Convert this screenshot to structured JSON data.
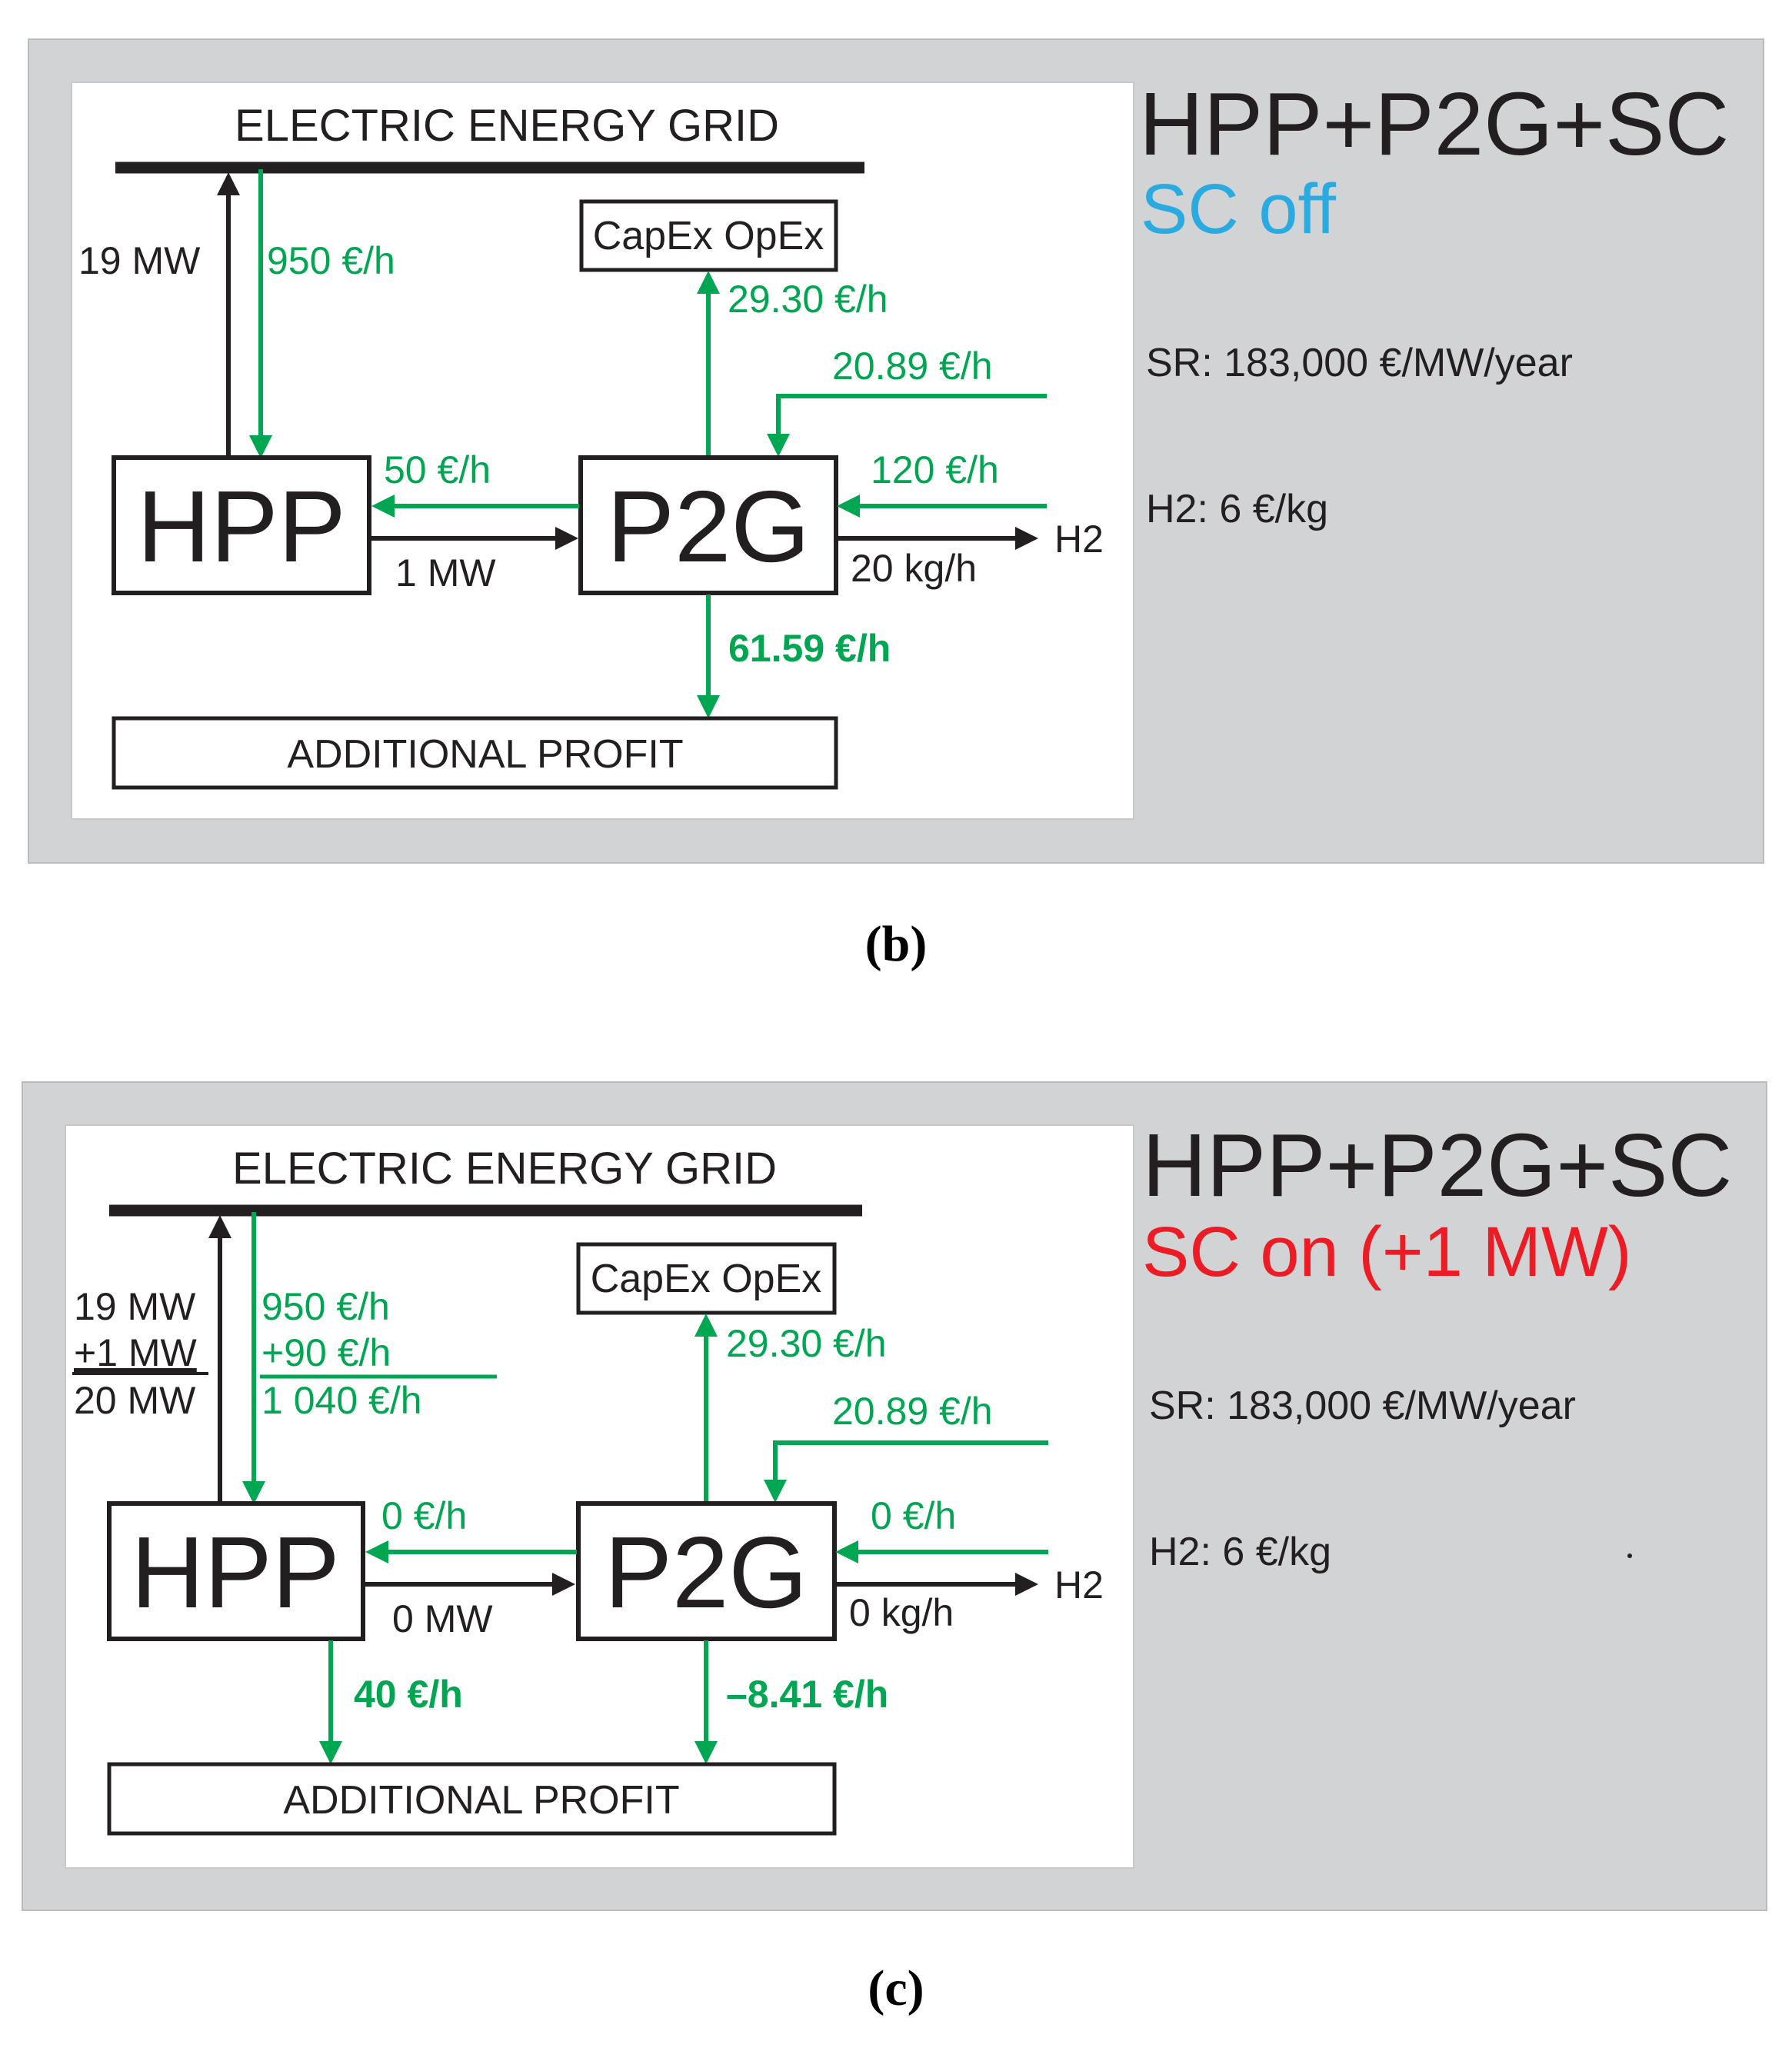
{
  "colors": {
    "flow_money": "#00a651",
    "flow_power": "#231f20",
    "status_off": "#29abe2",
    "status_on": "#ed1c24",
    "panel_bg": "#d1d3d4"
  },
  "panel_b": {
    "caption": "(b)",
    "title": "HPP+P2G+SC",
    "status": "SC off",
    "sr_param": "SR: 183,000 €/MW/year",
    "h2_param": "H2: 6 €/kg",
    "grid_label": "ELECTRIC ENERGY GRID",
    "capex_label": "CapEx OpEx",
    "hpp_label": "HPP",
    "p2g_label": "P2G",
    "profit_label": "ADDITIONAL PROFIT",
    "h2_label": "H2",
    "hpp_to_grid_power": "19 MW",
    "grid_to_hpp_money": "950 €/h",
    "p2g_to_capex_money": "29.30 €/h",
    "sr_to_p2g_money": "20.89 €/h",
    "p2g_to_hpp_money": "50 €/h",
    "h2_to_p2g_money": "120 €/h",
    "hpp_to_p2g_power": "1 MW",
    "h2_output": "20 kg/h",
    "p2g_profit": "61.59 €/h"
  },
  "panel_c": {
    "caption": "(c)",
    "title": "HPP+P2G+SC",
    "status": "SC on (+1 MW)",
    "sr_param": "SR: 183,000 €/MW/year",
    "h2_param": "H2: 6 €/kg",
    "grid_label": "ELECTRIC ENERGY GRID",
    "capex_label": "CapEx OpEx",
    "hpp_label": "HPP",
    "p2g_label": "P2G",
    "profit_label": "ADDITIONAL PROFIT",
    "h2_label": "H2",
    "power_line_1": "19 MW",
    "power_line_2": "+1 MW",
    "power_line_3": "20 MW",
    "money_line_1": "950 €/h",
    "money_line_2": "+90 €/h",
    "money_line_3": "1 040 €/h",
    "p2g_to_capex_money": "29.30 €/h",
    "sr_to_p2g_money": "20.89 €/h",
    "p2g_to_hpp_money": "0 €/h",
    "h2_to_p2g_money": "0 €/h",
    "hpp_to_p2g_power": "0 MW",
    "h2_output": "0 kg/h",
    "hpp_profit": "40 €/h",
    "p2g_profit": "–8.41 €/h"
  }
}
